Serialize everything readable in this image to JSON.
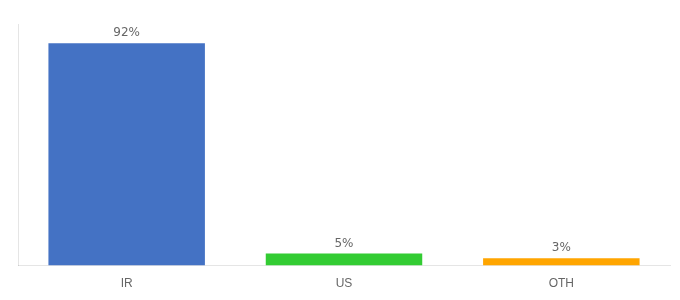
{
  "chart_data": {
    "type": "bar",
    "categories": [
      "IR",
      "US",
      "OTH"
    ],
    "values": [
      92,
      5,
      3
    ],
    "value_labels": [
      "92%",
      "5%",
      "3%"
    ],
    "colors": [
      "#4472C4",
      "#33CC33",
      "#FFA500"
    ],
    "ylim": [
      0,
      100
    ],
    "grid": false,
    "data_labels": true,
    "tick_labels": "x"
  }
}
